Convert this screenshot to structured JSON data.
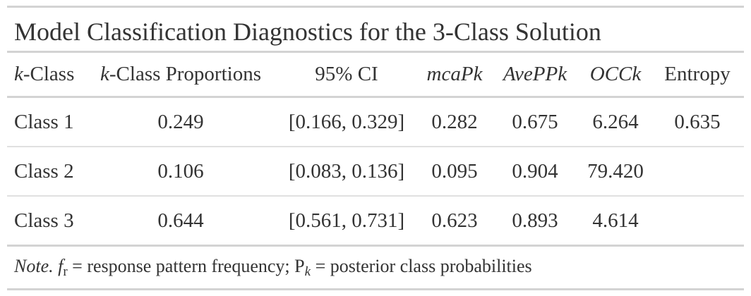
{
  "title": "Model Classification Diagnostics for the 3-Class Solution",
  "headers": {
    "k_italic": "k",
    "k_class_rest": "-Class",
    "k_prop_italic": "k",
    "k_prop_rest": "-Class Proportions",
    "ci": "95% CI",
    "mcapk": "mcaPk",
    "avepp": "AvePPk",
    "occk": "OCCk",
    "entropy": "Entropy"
  },
  "rows": [
    {
      "cls": "Class 1",
      "prop": "0.249",
      "ci": "[0.166, 0.329]",
      "mcapk": "0.282",
      "avepp": "0.675",
      "occk": "6.264",
      "entropy": "0.635"
    },
    {
      "cls": "Class 2",
      "prop": "0.106",
      "ci": "[0.083, 0.136]",
      "mcapk": "0.095",
      "avepp": "0.904",
      "occk": "79.420",
      "entropy": ""
    },
    {
      "cls": "Class 3",
      "prop": "0.644",
      "ci": "[0.561, 0.731]",
      "mcapk": "0.623",
      "avepp": "0.893",
      "occk": "4.614",
      "entropy": ""
    }
  ],
  "note": {
    "label": "Note.",
    "f_symbol": "f",
    "f_sub": "r",
    "f_text": " = response pattern frequency; ",
    "p_symbol": "P",
    "p_sub": "k",
    "p_text": " = posterior class probabilities"
  }
}
